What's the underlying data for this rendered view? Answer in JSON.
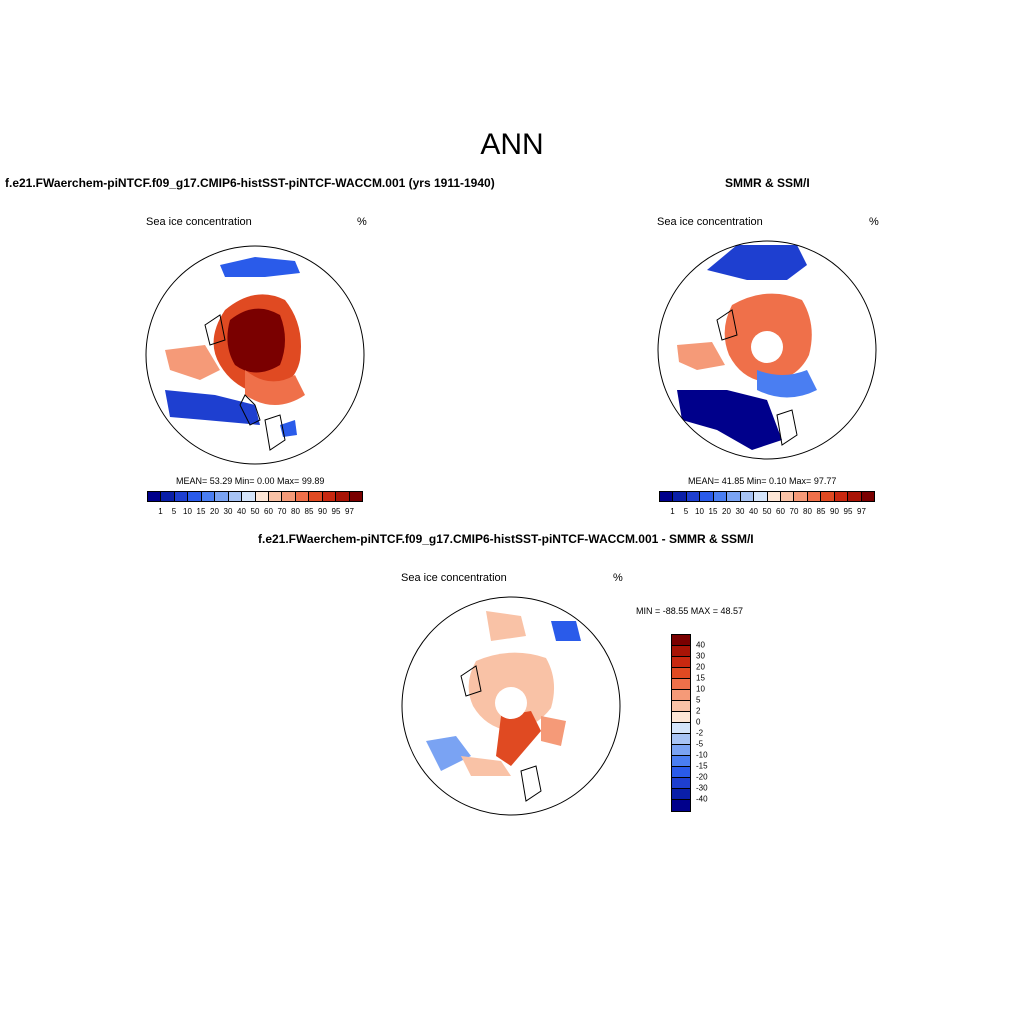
{
  "figure_title": "ANN",
  "panels": {
    "model": {
      "title": "f.e21.FWaerchem-piNTCF.f09_g17.CMIP6-histSST-piNTCF-WACCM.001 (yrs 1911-1940)",
      "variable": "Sea ice concentration",
      "units": "%",
      "stats": "MEAN=  53.29  Min=   0.00  Max=  99.89"
    },
    "obs": {
      "title": "SMMR & SSM/I",
      "variable": "Sea ice concentration",
      "units": "%",
      "stats": "MEAN=  41.85  Min=   0.10  Max=  97.77"
    },
    "diff": {
      "title": "f.e21.FWaerchem-piNTCF.f09_g17.CMIP6-histSST-piNTCF-WACCM.001 - SMMR & SSM/I",
      "variable": "Sea ice concentration",
      "units": "%",
      "stats": "MIN = -88.55 MAX =  48.57"
    }
  },
  "colorbar_abs": {
    "ticks": [
      "1",
      "5",
      "10",
      "15",
      "20",
      "30",
      "40",
      "50",
      "60",
      "70",
      "80",
      "85",
      "90",
      "95",
      "97"
    ],
    "colors": [
      "#00008b",
      "#0a1fa8",
      "#1e3fd0",
      "#2a5bea",
      "#4a7ef2",
      "#7aa3f3",
      "#a7c3f4",
      "#d4e4fa",
      "#fde6d6",
      "#f9c2a6",
      "#f59a78",
      "#ef704a",
      "#e04a22",
      "#c82810",
      "#a81406",
      "#7a0000"
    ]
  },
  "colorbar_diff": {
    "ticks": [
      "40",
      "30",
      "20",
      "15",
      "10",
      "5",
      "2",
      "0",
      "-2",
      "-5",
      "-10",
      "-15",
      "-20",
      "-30",
      "-40"
    ],
    "colors": [
      "#7a0000",
      "#a81406",
      "#c82810",
      "#e04a22",
      "#ef704a",
      "#f59a78",
      "#f9c2a6",
      "#fde6d6",
      "#d4e4fa",
      "#a7c3f4",
      "#7aa3f3",
      "#4a7ef2",
      "#2a5bea",
      "#1e3fd0",
      "#0a1fa8",
      "#00008b"
    ]
  }
}
